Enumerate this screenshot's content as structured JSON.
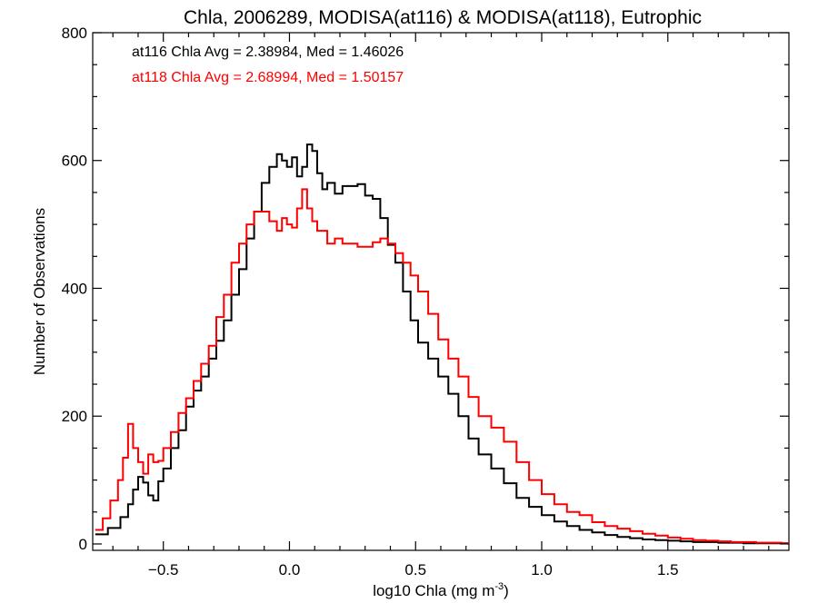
{
  "chart_data": {
    "type": "histogram-step",
    "title": "Chla, 2006289, MODISA(at116) & MODISA(at118), Eutrophic",
    "xlabel_main": "log10 Chla (mg m",
    "xlabel_sup": "-3",
    "xlabel_tail": ")",
    "ylabel": "Number of Observations",
    "xlim": [
      -0.78,
      1.98
    ],
    "ylim": [
      -10,
      800
    ],
    "x_ticks": [
      -0.5,
      0.0,
      0.5,
      1.0,
      1.5
    ],
    "x_tick_labels": [
      "−0.5",
      "0.0",
      "0.5",
      "1.0",
      "1.5"
    ],
    "y_ticks": [
      0,
      200,
      400,
      600,
      800
    ],
    "y_tick_labels": [
      "0",
      "200",
      "400",
      "600",
      "800"
    ],
    "grid": false,
    "annotations": [
      {
        "text": "at116 Chla Avg = 2.38984, Med = 1.46026",
        "color": "#000000"
      },
      {
        "text": "at118 Chla Avg = 2.68994, Med = 1.50157",
        "color": "#ff0000"
      }
    ],
    "series": [
      {
        "color": "#000000",
        "x": [
          -0.77,
          -0.72,
          -0.67,
          -0.64,
          -0.62,
          -0.6,
          -0.58,
          -0.56,
          -0.54,
          -0.52,
          -0.5,
          -0.47,
          -0.44,
          -0.41,
          -0.38,
          -0.35,
          -0.32,
          -0.29,
          -0.26,
          -0.23,
          -0.2,
          -0.17,
          -0.14,
          -0.11,
          -0.08,
          -0.05,
          -0.03,
          -0.01,
          0.01,
          0.03,
          0.05,
          0.07,
          0.09,
          0.11,
          0.13,
          0.15,
          0.18,
          0.21,
          0.24,
          0.27,
          0.3,
          0.33,
          0.36,
          0.39,
          0.42,
          0.45,
          0.48,
          0.51,
          0.55,
          0.59,
          0.63,
          0.67,
          0.71,
          0.75,
          0.8,
          0.85,
          0.9,
          0.95,
          1.0,
          1.05,
          1.1,
          1.15,
          1.2,
          1.25,
          1.3,
          1.35,
          1.4,
          1.45,
          1.5,
          1.55,
          1.6,
          1.65,
          1.7,
          1.75,
          1.8,
          1.85,
          1.9,
          1.95
        ],
        "y": [
          15,
          25,
          42,
          62,
          85,
          105,
          96,
          76,
          68,
          98,
          118,
          150,
          178,
          215,
          240,
          262,
          290,
          318,
          350,
          390,
          430,
          478,
          520,
          565,
          590,
          610,
          600,
          590,
          605,
          575,
          590,
          625,
          615,
          580,
          555,
          565,
          548,
          560,
          560,
          563,
          545,
          540,
          510,
          468,
          440,
          395,
          350,
          315,
          290,
          262,
          235,
          200,
          165,
          140,
          118,
          95,
          72,
          58,
          45,
          35,
          28,
          22,
          18,
          14,
          11,
          9,
          7,
          6,
          5,
          4,
          3,
          3,
          2,
          2,
          1,
          1,
          1,
          1
        ]
      },
      {
        "color": "#ff0000",
        "x": [
          -0.77,
          -0.74,
          -0.71,
          -0.68,
          -0.66,
          -0.64,
          -0.62,
          -0.6,
          -0.58,
          -0.56,
          -0.54,
          -0.52,
          -0.5,
          -0.47,
          -0.44,
          -0.41,
          -0.38,
          -0.35,
          -0.32,
          -0.29,
          -0.26,
          -0.23,
          -0.2,
          -0.17,
          -0.14,
          -0.11,
          -0.08,
          -0.05,
          -0.03,
          -0.01,
          0.01,
          0.03,
          0.05,
          0.07,
          0.09,
          0.11,
          0.13,
          0.15,
          0.18,
          0.21,
          0.24,
          0.27,
          0.3,
          0.33,
          0.36,
          0.39,
          0.42,
          0.45,
          0.48,
          0.51,
          0.55,
          0.59,
          0.63,
          0.67,
          0.71,
          0.75,
          0.8,
          0.85,
          0.9,
          0.95,
          1.0,
          1.05,
          1.1,
          1.15,
          1.2,
          1.25,
          1.3,
          1.35,
          1.4,
          1.45,
          1.5,
          1.55,
          1.6,
          1.65,
          1.7,
          1.75,
          1.8,
          1.85,
          1.9,
          1.95
        ],
        "y": [
          22,
          40,
          68,
          100,
          135,
          188,
          150,
          128,
          110,
          140,
          128,
          130,
          150,
          175,
          205,
          228,
          255,
          282,
          310,
          355,
          390,
          440,
          470,
          500,
          520,
          520,
          505,
          490,
          510,
          500,
          495,
          525,
          555,
          525,
          505,
          490,
          490,
          470,
          478,
          470,
          470,
          465,
          465,
          472,
          478,
          470,
          455,
          440,
          420,
          395,
          360,
          320,
          290,
          262,
          230,
          200,
          182,
          160,
          128,
          100,
          78,
          62,
          50,
          45,
          34,
          28,
          24,
          20,
          16,
          13,
          10,
          8,
          6,
          5,
          4,
          3,
          3,
          2,
          2,
          1
        ]
      }
    ]
  }
}
